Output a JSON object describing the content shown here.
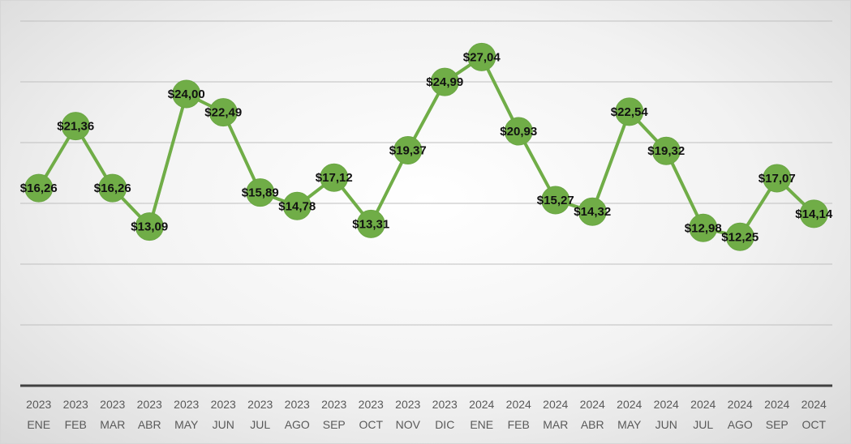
{
  "chart_data": {
    "type": "line",
    "title": "",
    "xlabel": "",
    "ylabel": "",
    "grid": true,
    "legend": "none",
    "ylim": [
      0,
      30
    ],
    "color": "#70ad47",
    "categories": [
      [
        "2023",
        "ENE"
      ],
      [
        "2023",
        "FEB"
      ],
      [
        "2023",
        "MAR"
      ],
      [
        "2023",
        "ABR"
      ],
      [
        "2023",
        "MAY"
      ],
      [
        "2023",
        "JUN"
      ],
      [
        "2023",
        "JUL"
      ],
      [
        "2023",
        "AGO"
      ],
      [
        "2023",
        "SEP"
      ],
      [
        "2023",
        "OCT"
      ],
      [
        "2023",
        "NOV"
      ],
      [
        "2023",
        "DIC"
      ],
      [
        "2024",
        "ENE"
      ],
      [
        "2024",
        "FEB"
      ],
      [
        "2024",
        "MAR"
      ],
      [
        "2024",
        "ABR"
      ],
      [
        "2024",
        "MAY"
      ],
      [
        "2024",
        "JUN"
      ],
      [
        "2024",
        "JUL"
      ],
      [
        "2024",
        "AGO"
      ],
      [
        "2024",
        "SEP"
      ],
      [
        "2024",
        "OCT"
      ]
    ],
    "values": [
      16.26,
      21.36,
      16.26,
      13.09,
      24.0,
      22.49,
      15.89,
      14.78,
      17.12,
      13.31,
      19.37,
      24.99,
      27.04,
      20.93,
      15.27,
      14.32,
      22.54,
      19.32,
      12.98,
      12.25,
      17.07,
      14.14
    ],
    "labels": [
      "$16,26",
      "$21,36",
      "$16,26",
      "$13,09",
      "$24,00",
      "$22,49",
      "$15,89",
      "$14,78",
      "$17,12",
      "$13,31",
      "$19,37",
      "$24,99",
      "$27,04",
      "$20,93",
      "$15,27",
      "$14,32",
      "$22,54",
      "$19,32",
      "$12,98",
      "$12,25",
      "$17,07",
      "$14,14"
    ]
  }
}
